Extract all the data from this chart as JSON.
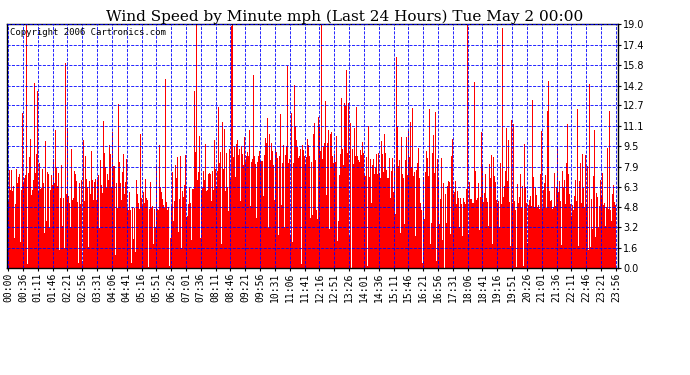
{
  "title": "Wind Speed by Minute mph (Last 24 Hours) Tue May 2 00:00",
  "copyright_text": "Copyright 2006 Cartronics.com",
  "y_ticks": [
    0.0,
    1.6,
    3.2,
    4.8,
    6.3,
    7.9,
    9.5,
    11.1,
    12.7,
    14.2,
    15.8,
    17.4,
    19.0
  ],
  "ylim": [
    0.0,
    19.0
  ],
  "x_tick_labels": [
    "00:00",
    "00:36",
    "01:11",
    "01:46",
    "02:21",
    "02:56",
    "03:31",
    "04:06",
    "04:41",
    "05:16",
    "05:51",
    "06:26",
    "07:01",
    "07:36",
    "08:11",
    "08:46",
    "09:21",
    "09:56",
    "10:31",
    "11:06",
    "11:41",
    "12:16",
    "12:51",
    "13:26",
    "14:01",
    "14:36",
    "15:11",
    "15:46",
    "16:21",
    "16:56",
    "17:31",
    "18:06",
    "18:41",
    "19:16",
    "19:51",
    "20:26",
    "21:01",
    "21:36",
    "22:11",
    "22:46",
    "23:21",
    "23:56"
  ],
  "bar_color": "#FF0000",
  "background_color": "#FFFFFF",
  "grid_color": "#0000FF",
  "title_fontsize": 11,
  "copyright_fontsize": 6.5,
  "tick_fontsize": 7,
  "seed": 42,
  "n_minutes": 1440
}
